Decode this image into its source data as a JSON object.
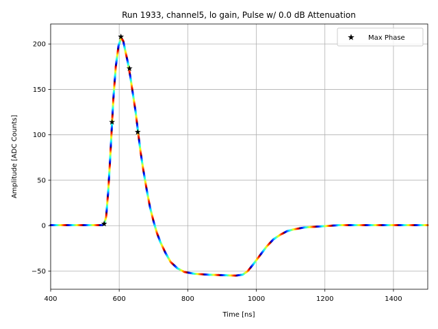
{
  "chart_data": {
    "type": "scatter",
    "title": "Run 1933, channel5, lo gain, Pulse w/ 0.0 dB Attenuation",
    "xlabel": "Time [ns]",
    "ylabel": "Amplitude [ADC Counts]",
    "xlim": [
      400,
      1500
    ],
    "ylim": [
      -70,
      222
    ],
    "xticks": [
      400,
      600,
      800,
      1000,
      1200,
      1400
    ],
    "xtick_labels": [
      "400",
      "600",
      "800",
      "1000",
      "1200",
      "1400"
    ],
    "yticks": [
      -50,
      0,
      50,
      100,
      150,
      200
    ],
    "ytick_labels": [
      "−50",
      "0",
      "50",
      "100",
      "150",
      "200"
    ],
    "grid": true,
    "legend": {
      "position": "top-right",
      "entries": [
        "Max Phase"
      ]
    },
    "color_scale": "jet",
    "pulse_curve": [
      [
        400,
        0.5
      ],
      [
        500,
        0.5
      ],
      [
        550,
        0.5
      ],
      [
        556,
        1.5
      ],
      [
        562,
        10
      ],
      [
        568,
        38
      ],
      [
        573,
        70
      ],
      [
        578,
        105
      ],
      [
        583,
        140
      ],
      [
        590,
        175
      ],
      [
        598,
        198
      ],
      [
        606,
        207
      ],
      [
        612,
        203
      ],
      [
        618,
        192
      ],
      [
        625,
        180
      ],
      [
        632,
        165
      ],
      [
        640,
        145
      ],
      [
        648,
        125
      ],
      [
        655,
        103
      ],
      [
        662,
        82
      ],
      [
        670,
        62
      ],
      [
        680,
        40
      ],
      [
        690,
        20
      ],
      [
        700,
        5
      ],
      [
        710,
        -8
      ],
      [
        720,
        -18
      ],
      [
        735,
        -30
      ],
      [
        750,
        -40
      ],
      [
        770,
        -47
      ],
      [
        790,
        -51
      ],
      [
        820,
        -53
      ],
      [
        860,
        -54
      ],
      [
        900,
        -54.5
      ],
      [
        940,
        -55
      ],
      [
        960,
        -54
      ],
      [
        975,
        -50
      ],
      [
        990,
        -43
      ],
      [
        1010,
        -33
      ],
      [
        1030,
        -23
      ],
      [
        1050,
        -15
      ],
      [
        1070,
        -10
      ],
      [
        1090,
        -6
      ],
      [
        1110,
        -4
      ],
      [
        1140,
        -2
      ],
      [
        1180,
        -1
      ],
      [
        1240,
        0.5
      ],
      [
        1300,
        0.5
      ],
      [
        1400,
        0.5
      ],
      [
        1500,
        0.5
      ]
    ],
    "max_phase_points": [
      {
        "x": 556,
        "y": 2
      },
      {
        "x": 579,
        "y": 114
      },
      {
        "x": 605,
        "y": 208
      },
      {
        "x": 630,
        "y": 173
      },
      {
        "x": 654,
        "y": 103
      }
    ]
  }
}
